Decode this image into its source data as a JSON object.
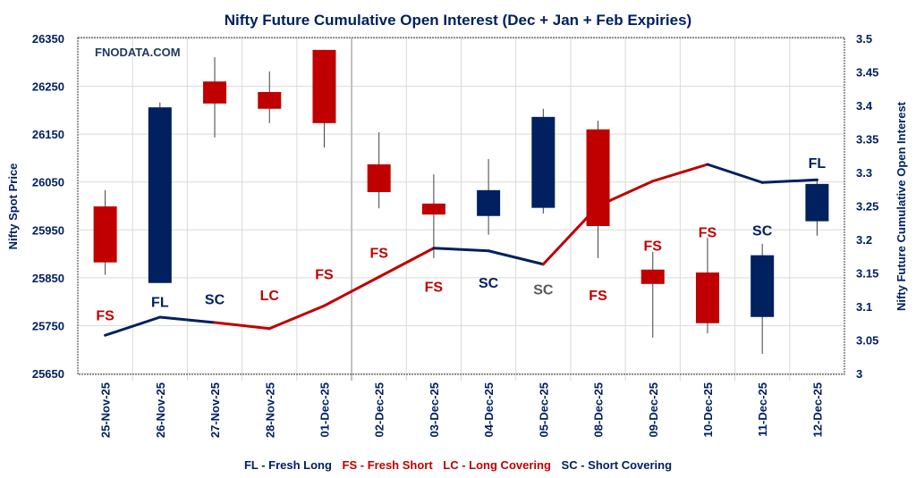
{
  "chart_data": {
    "type": "candlestick+line",
    "title": "Nifty Future Cumulative Open Interest (Dec + Jan  + Feb Expiries)",
    "watermark": "FNODATA.COM",
    "ylabel_left": "Nifty Spot Price",
    "ylabel_right": "Nifty Future Cumulative Open Interest",
    "ylim_left": [
      25650,
      26350
    ],
    "yticks_left": [
      "25650",
      "25750",
      "25850",
      "25950",
      "26050",
      "26150",
      "26250",
      "26350"
    ],
    "ylim_right": [
      3,
      3.5
    ],
    "yticks_right": [
      "3",
      "3.05",
      "3.1",
      "3.15",
      "3.2",
      "3.25",
      "3.3",
      "3.35",
      "3.4",
      "3.45",
      "3.5"
    ],
    "grid": true,
    "categories": [
      "25-Nov-25",
      "26-Nov-25",
      "27-Nov-25",
      "28-Nov-25",
      "01-Dec-25",
      "02-Dec-25",
      "03-Dec-25",
      "04-Dec-25",
      "05-Dec-25",
      "08-Dec-25",
      "09-Dec-25",
      "10-Dec-25",
      "11-Dec-25",
      "12-Dec-25"
    ],
    "candles": [
      {
        "open": 25999,
        "high": 26033,
        "low": 25856,
        "close": 25882
      },
      {
        "open": 25839,
        "high": 26216,
        "low": 25839,
        "close": 26206
      },
      {
        "open": 26260,
        "high": 26311,
        "low": 26143,
        "close": 26214
      },
      {
        "open": 26238,
        "high": 26281,
        "low": 26173,
        "close": 26203
      },
      {
        "open": 26326,
        "high": 26326,
        "low": 26122,
        "close": 26173
      },
      {
        "open": 26087,
        "high": 26154,
        "low": 25995,
        "close": 26029
      },
      {
        "open": 26005,
        "high": 26066,
        "low": 25891,
        "close": 25982
      },
      {
        "open": 25979,
        "high": 26098,
        "low": 25940,
        "close": 26033
      },
      {
        "open": 25996,
        "high": 26203,
        "low": 25984,
        "close": 26186
      },
      {
        "open": 26160,
        "high": 26178,
        "low": 25891,
        "close": 25958
      },
      {
        "open": 25867,
        "high": 25904,
        "low": 25725,
        "close": 25837
      },
      {
        "open": 25861,
        "high": 25934,
        "low": 25734,
        "close": 25755
      },
      {
        "open": 25768,
        "high": 25921,
        "low": 25691,
        "close": 25897
      },
      {
        "open": 25968,
        "high": 26053,
        "low": 25938,
        "close": 26046
      }
    ],
    "open_interest": [
      3.057,
      3.084,
      3.076,
      3.067,
      3.101,
      3.144,
      3.187,
      3.183,
      3.163,
      3.25,
      3.287,
      3.312,
      3.285,
      3.289
    ],
    "signals": [
      "FS",
      "FL",
      "SC",
      "LC",
      "FS",
      "FS",
      "FS",
      "SC",
      "SC",
      "FS",
      "FS",
      "FS",
      "SC",
      "FL"
    ],
    "colors": {
      "up": "#002060",
      "down": "#C00000",
      "FL": "#002060",
      "SC": "#002060",
      "FS": "#C00000",
      "LC": "#C00000",
      "SC_muted": "#595959",
      "grid": "#D9D9D9",
      "wick": "#404040"
    },
    "legend": [
      {
        "label": "FL - Fresh Long",
        "color": "#002060"
      },
      {
        "label": "FS - Fresh Short",
        "color": "#C00000"
      },
      {
        "label": "LC - Long Covering",
        "color": "#C00000"
      },
      {
        "label": "SC - Short Covering",
        "color": "#002060"
      }
    ],
    "legend_position": "bottom"
  }
}
